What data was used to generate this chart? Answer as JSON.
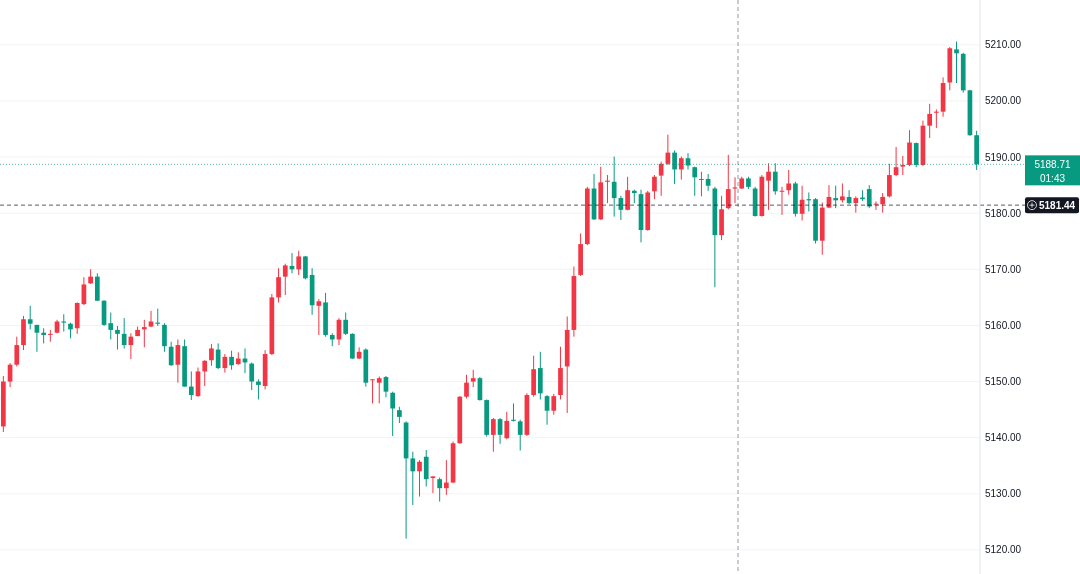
{
  "chart_data": {
    "type": "candlestick",
    "categories": [
      null,
      null,
      null,
      null,
      null,
      null,
      null,
      null,
      null,
      null,
      null,
      null,
      null,
      null,
      null,
      null,
      null,
      null,
      null,
      null,
      null,
      null,
      null,
      null,
      null,
      null,
      null,
      null,
      null,
      null,
      null,
      null,
      null,
      null,
      null,
      null,
      null,
      null,
      null,
      null,
      null,
      null,
      null,
      null,
      null,
      null,
      null,
      null,
      null,
      null,
      null,
      null,
      null,
      null,
      null,
      null,
      null,
      null,
      null,
      null,
      null,
      null,
      null,
      null,
      null,
      null,
      null,
      null,
      null,
      null,
      null,
      null,
      null,
      null,
      null,
      null,
      null,
      null,
      null,
      null,
      null,
      null,
      null,
      null,
      null,
      null,
      null,
      null,
      null,
      null,
      null,
      null,
      null,
      null,
      null,
      null,
      null,
      null,
      null,
      null,
      null,
      null,
      null,
      null,
      null,
      null,
      null,
      null,
      null,
      null,
      null,
      null,
      null,
      null,
      null,
      null,
      null,
      null,
      null,
      null,
      null,
      null,
      null,
      null,
      null,
      null,
      null,
      null,
      null,
      null,
      null,
      null,
      null,
      null,
      null,
      null,
      null,
      null,
      null,
      null,
      null,
      null,
      null,
      null,
      null,
      null
    ],
    "ohlc": [
      [
        5142,
        5151,
        5141,
        5150
      ],
      [
        5150,
        5153.3,
        5149,
        5153
      ],
      [
        5153,
        5158,
        5152.7,
        5156.5
      ],
      [
        5156.5,
        5161.7,
        5155.6,
        5161.1
      ],
      [
        5161.1,
        5163.5,
        5159.3,
        5160.3
      ],
      [
        5160.1,
        5160.1,
        5155.3,
        5158.7
      ],
      [
        5158.7,
        5159.5,
        5156.8,
        5158.3
      ],
      [
        5158.4,
        5159.2,
        5157.1,
        5158.5
      ],
      [
        5158.7,
        5161,
        5158.6,
        5160.7
      ],
      [
        5160.7,
        5162,
        5158.9,
        5160.5
      ],
      [
        5160.3,
        5160.5,
        5157.7,
        5159.3
      ],
      [
        5159.5,
        5164.1,
        5158.5,
        5164
      ],
      [
        5163.8,
        5168.6,
        5163.6,
        5167.3
      ],
      [
        5167.5,
        5170,
        5167.4,
        5168.7
      ],
      [
        5168.7,
        5169.3,
        5164.4,
        5164.4
      ],
      [
        5164.4,
        5164.5,
        5159.9,
        5160.1
      ],
      [
        5160.4,
        5162.3,
        5157.5,
        5159.2
      ],
      [
        5159.2,
        5159.9,
        5155.7,
        5158.5
      ],
      [
        5158.5,
        5161.3,
        5155.9,
        5156.5
      ],
      [
        5156.5,
        5158.6,
        5154,
        5158
      ],
      [
        5158.1,
        5159.8,
        5158.1,
        5159.2
      ],
      [
        5159.3,
        5161,
        5156.1,
        5159.7
      ],
      [
        5159.8,
        5162.6,
        5159.7,
        5160.7
      ],
      [
        5160.5,
        5163,
        5159.9,
        5160.3
      ],
      [
        5160.1,
        5160.4,
        5155.3,
        5156.3
      ],
      [
        5156.2,
        5157.1,
        5152.8,
        5152.9
      ],
      [
        5153,
        5157.5,
        5149.8,
        5156.5
      ],
      [
        5156.3,
        5157.5,
        5149.1,
        5149.1
      ],
      [
        5149.1,
        5151.8,
        5146.7,
        5147.6
      ],
      [
        5147.4,
        5152.5,
        5147.3,
        5151.8
      ],
      [
        5151.8,
        5153.8,
        5149.2,
        5153.7
      ],
      [
        5153.8,
        5156.7,
        5152.8,
        5155.9
      ],
      [
        5155.7,
        5156.8,
        5152.2,
        5152.4
      ],
      [
        5152.4,
        5154.9,
        5151.6,
        5154.4
      ],
      [
        5154.4,
        5155.5,
        5152.1,
        5152.9
      ],
      [
        5153.1,
        5155.2,
        5153,
        5154.1
      ],
      [
        5154.1,
        5155.9,
        5151.5,
        5153.4
      ],
      [
        5153.2,
        5153.4,
        5148.5,
        5150
      ],
      [
        5150,
        5150.4,
        5146.8,
        5149.4
      ],
      [
        5149.2,
        5155.6,
        5148.6,
        5154.9
      ],
      [
        5154.9,
        5165.6,
        5154.7,
        5165
      ],
      [
        5165,
        5170.2,
        5164.1,
        5168.6
      ],
      [
        5168.7,
        5171,
        5165.4,
        5170.7
      ],
      [
        5170.6,
        5172.9,
        5169.3,
        5170
      ],
      [
        5170,
        5173.3,
        5169,
        5172.3
      ],
      [
        5172.3,
        5172.4,
        5168.2,
        5168.4
      ],
      [
        5169,
        5170.2,
        5161.9,
        5163.6
      ],
      [
        5163.5,
        5164.7,
        5158.3,
        5164.3
      ],
      [
        5164.1,
        5165.8,
        5158,
        5158.3
      ],
      [
        5158.3,
        5158.6,
        5156.3,
        5157.5
      ],
      [
        5157.5,
        5161.3,
        5156.5,
        5161
      ],
      [
        5161,
        5162.3,
        5158.3,
        5158.5
      ],
      [
        5158.5,
        5158.6,
        5154,
        5154.1
      ],
      [
        5154.1,
        5156.1,
        5154,
        5155.3
      ],
      [
        5155.7,
        5155.9,
        5149.1,
        5149.8
      ],
      [
        5150.3,
        5150.4,
        5146.1,
        5150.4
      ],
      [
        5149.8,
        5150.9,
        5146.1,
        5150.6
      ],
      [
        5150.8,
        5151,
        5147.2,
        5148.2
      ],
      [
        5148,
        5148.2,
        5140.3,
        5145.2
      ],
      [
        5144.9,
        5145.5,
        5142.6,
        5143.7
      ],
      [
        5142.7,
        5142.9,
        5122,
        5136.3
      ],
      [
        5136.3,
        5137.5,
        5128,
        5134
      ],
      [
        5134,
        5136,
        5129.5,
        5135.7
      ],
      [
        5136.6,
        5137.8,
        5131.3,
        5132.6
      ],
      [
        5132.8,
        5133.1,
        5130.1,
        5133.1
      ],
      [
        5132.6,
        5132.9,
        5128.6,
        5131
      ],
      [
        5131,
        5136,
        5129.8,
        5132
      ],
      [
        5132,
        5139.3,
        5131.9,
        5139
      ],
      [
        5139,
        5147.4,
        5138.9,
        5147.3
      ],
      [
        5147.3,
        5151.2,
        5147,
        5149.8
      ],
      [
        5150,
        5152.1,
        5149,
        5150.6
      ],
      [
        5150.6,
        5150.8,
        5146.6,
        5146.7
      ],
      [
        5146.7,
        5146.8,
        5140.2,
        5140.5
      ],
      [
        5140.5,
        5143.5,
        5137.5,
        5143.3
      ],
      [
        5143.3,
        5143.5,
        5138.9,
        5140.5
      ],
      [
        5139.9,
        5144.6,
        5139.7,
        5143
      ],
      [
        5143.2,
        5146.1,
        5142.9,
        5143
      ],
      [
        5142.9,
        5143.2,
        5137.7,
        5140.5
      ],
      [
        5140.5,
        5147.9,
        5140.3,
        5147.6
      ],
      [
        5147.6,
        5154.6,
        5147.3,
        5152.2
      ],
      [
        5152.4,
        5155.3,
        5146.8,
        5147.9
      ],
      [
        5147.4,
        5147.6,
        5142.3,
        5144.8
      ],
      [
        5144.8,
        5147.8,
        5144.1,
        5147.4
      ],
      [
        5147.6,
        5156.2,
        5146.8,
        5152.4
      ],
      [
        5152.7,
        5161.6,
        5144.4,
        5159.2
      ],
      [
        5159.2,
        5170.5,
        5158,
        5168.8
      ],
      [
        5169,
        5176.4,
        5168.8,
        5174.5
      ],
      [
        5174.5,
        5184.7,
        5174.3,
        5184.4
      ],
      [
        5184.4,
        5187,
        5178.8,
        5178.9
      ],
      [
        5178.9,
        5188.3,
        5178.8,
        5185.5
      ],
      [
        5185.6,
        5186.8,
        5181.8,
        5185.8
      ],
      [
        5185.6,
        5190.1,
        5179.4,
        5182.7
      ],
      [
        5182.7,
        5183.1,
        5178.8,
        5180.6
      ],
      [
        5180.6,
        5186.5,
        5180.5,
        5184.1
      ],
      [
        5184,
        5184.2,
        5181.8,
        5183.6
      ],
      [
        5183.4,
        5184.2,
        5174.8,
        5177
      ],
      [
        5177,
        5184,
        5176.9,
        5183.7
      ],
      [
        5183.9,
        5186.8,
        5182.5,
        5186.5
      ],
      [
        5186.7,
        5189.2,
        5183.1,
        5188.8
      ],
      [
        5188.8,
        5194,
        5188.6,
        5190.8
      ],
      [
        5190.8,
        5191.2,
        5185.2,
        5187.8
      ],
      [
        5187.8,
        5190.1,
        5186,
        5189.8
      ],
      [
        5189.8,
        5190.7,
        5187.8,
        5188.5
      ],
      [
        5188.2,
        5188.3,
        5183.1,
        5186.4
      ],
      [
        5186,
        5187.4,
        5183,
        5186.1
      ],
      [
        5186.1,
        5187,
        5184,
        5184.9
      ],
      [
        5184.4,
        5184.7,
        5166.8,
        5176.1
      ],
      [
        5176.1,
        5183.1,
        5175.2,
        5180.7
      ],
      [
        5180.9,
        5190.4,
        5180.7,
        5184.3
      ],
      [
        5184.4,
        5186.4,
        5181.8,
        5184.6
      ],
      [
        5184.4,
        5186.5,
        5184.3,
        5186.2
      ],
      [
        5186.2,
        5186.5,
        5184.3,
        5184.7
      ],
      [
        5184.4,
        5184.7,
        5179.4,
        5179.5
      ],
      [
        5179.5,
        5186.8,
        5179.4,
        5186.5
      ],
      [
        5185.8,
        5188.9,
        5180.6,
        5187.4
      ],
      [
        5187.4,
        5188.9,
        5183.3,
        5183.9
      ],
      [
        5183.9,
        5184.7,
        5179.7,
        5184
      ],
      [
        5184.1,
        5187.7,
        5183.3,
        5185.3
      ],
      [
        5185.3,
        5185.6,
        5179.4,
        5179.9
      ],
      [
        5179.9,
        5184.9,
        5178.7,
        5182.4
      ],
      [
        5182.5,
        5183.7,
        5180.3,
        5182.3
      ],
      [
        5182.5,
        5182.7,
        5174.6,
        5175.1
      ],
      [
        5175.1,
        5181.9,
        5172.6,
        5181
      ],
      [
        5181,
        5185,
        5180.9,
        5182.9
      ],
      [
        5182.7,
        5184.9,
        5180.9,
        5182.3
      ],
      [
        5182.3,
        5185.3,
        5181.9,
        5183
      ],
      [
        5182.9,
        5184.1,
        5181.6,
        5181.8
      ],
      [
        5181.8,
        5183,
        5180.1,
        5182.7
      ],
      [
        5182.8,
        5184.1,
        5182.2,
        5182.5
      ],
      [
        5184.3,
        5185,
        5180.9,
        5181.2
      ],
      [
        5181.6,
        5182.1,
        5180.6,
        5181.7
      ],
      [
        5181.6,
        5183.6,
        5180.1,
        5182.9
      ],
      [
        5183,
        5188.8,
        5182.8,
        5186.8
      ],
      [
        5186.8,
        5191.8,
        5186.6,
        5188.2
      ],
      [
        5188.3,
        5190.2,
        5186.8,
        5188.6
      ],
      [
        5188.6,
        5194.8,
        5188.4,
        5192.6
      ],
      [
        5192.5,
        5192.6,
        5188.2,
        5188.6
      ],
      [
        5188.6,
        5196.5,
        5188.4,
        5195.6
      ],
      [
        5195.6,
        5199.5,
        5193.4,
        5197.7
      ],
      [
        5197.9,
        5198.5,
        5195.2,
        5198.1
      ],
      [
        5198.1,
        5204.2,
        5197.2,
        5203.2
      ],
      [
        5203.3,
        5209.6,
        5201.9,
        5209.4
      ],
      [
        5209.2,
        5210.6,
        5203.2,
        5208.5
      ],
      [
        5208.4,
        5208.6,
        5201.5,
        5201.9
      ],
      [
        5201.9,
        5202,
        5193.8,
        5193.9
      ],
      [
        5193.9,
        5194.7,
        5187.7,
        5188.71
      ]
    ],
    "ylim": [
      5115.7,
      5218
    ],
    "yticks": [
      {
        "value": 5120,
        "label": "5120.00"
      },
      {
        "value": 5130,
        "label": "5130.00"
      },
      {
        "value": 5140,
        "label": "5140.00"
      },
      {
        "value": 5150,
        "label": "5150.00"
      },
      {
        "value": 5160,
        "label": "5160.00"
      },
      {
        "value": 5170,
        "label": "5170.00"
      },
      {
        "value": 5180,
        "label": "5180.00"
      },
      {
        "value": 5190,
        "label": "5190.00"
      },
      {
        "value": 5200,
        "label": "5200.00"
      },
      {
        "value": 5210,
        "label": "5210.00"
      }
    ],
    "ref_lines": [
      {
        "axis": "y",
        "value": 5188.71,
        "label": "5188.71",
        "color": "#089981",
        "line_style": "dotted"
      },
      {
        "axis": "y",
        "value": 5181.44,
        "label": "5181.44",
        "color": "#131722",
        "line_style": "dashed"
      }
    ],
    "annotations": [
      "01:43"
    ],
    "grid": "y"
  }
}
